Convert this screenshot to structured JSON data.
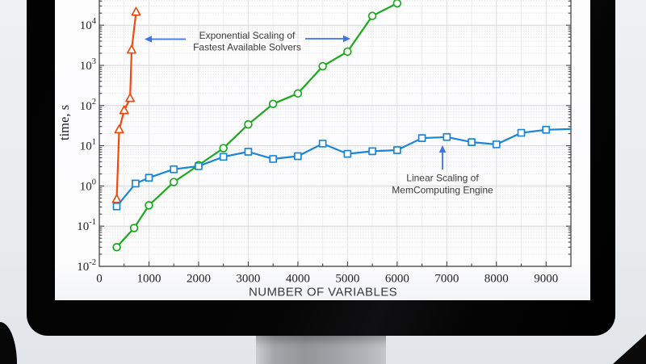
{
  "chart_data": {
    "type": "line",
    "title": "",
    "xlabel": "NUMBER OF VARIABLES",
    "ylabel": "time, s",
    "grid": {
      "major": true,
      "minor": true
    },
    "legend": "none",
    "x_axis": {
      "min": 0,
      "max": 9500,
      "major_tick_step": 1000,
      "minor_tick_step": 500,
      "tick_labels": [
        "0",
        "1000",
        "2000",
        "3000",
        "4000",
        "5000",
        "6000",
        "7000",
        "8000",
        "9000"
      ]
    },
    "y_axis": {
      "scale": "log10",
      "min_exponent": -2,
      "max_exponent": 5,
      "tick_labels": [
        "10^-2",
        "10^-1",
        "10^0",
        "10^1",
        "10^2",
        "10^3",
        "10^4"
      ]
    },
    "series": [
      {
        "name": "fastest-available-solvers-steep",
        "marker": "triangle",
        "color": "#ed4b0e",
        "points": [
          [
            350,
            0.46
          ],
          [
            400,
            25
          ],
          [
            500,
            75
          ],
          [
            620,
            150
          ],
          [
            650,
            2400
          ],
          [
            740,
            21000
          ]
        ]
      },
      {
        "name": "fastest-available-solvers",
        "marker": "circle",
        "color": "#1ca81c",
        "points": [
          [
            350,
            0.03
          ],
          [
            700,
            0.09
          ],
          [
            1000,
            0.33
          ],
          [
            1500,
            1.25
          ],
          [
            2000,
            3.3
          ],
          [
            2500,
            8.7
          ],
          [
            3000,
            34
          ],
          [
            3500,
            110
          ],
          [
            4000,
            200
          ],
          [
            4500,
            950
          ],
          [
            5000,
            2200
          ],
          [
            5500,
            17000
          ],
          [
            6000,
            35000
          ]
        ]
      },
      {
        "name": "memcomputing-engine",
        "marker": "square",
        "color": "#1b86d8",
        "points": [
          [
            350,
            0.31
          ],
          [
            730,
            1.15
          ],
          [
            1000,
            1.6
          ],
          [
            1500,
            2.6
          ],
          [
            2000,
            3.1
          ],
          [
            2500,
            5.3
          ],
          [
            3000,
            7.1
          ],
          [
            3500,
            4.7
          ],
          [
            4000,
            5.5
          ],
          [
            4500,
            11.3
          ],
          [
            5000,
            6.3
          ],
          [
            5500,
            7.3
          ],
          [
            6000,
            7.8
          ],
          [
            6500,
            15.5
          ],
          [
            7000,
            16.5
          ],
          [
            7500,
            12.3
          ],
          [
            8000,
            10.8
          ],
          [
            8500,
            21
          ],
          [
            9000,
            25
          ],
          [
            9500,
            26
          ]
        ]
      }
    ],
    "annotations": [
      {
        "id": "exponential-scaling",
        "lines": [
          "Exponential Scaling of",
          "Fastest Available Solvers"
        ],
        "text_color": "#3a3a3a",
        "arrow_color": "#3e73e8",
        "arrows": [
          "left",
          "right"
        ]
      },
      {
        "id": "linear-scaling",
        "lines": [
          "Linear Scaling of",
          "MemComputing Engine"
        ],
        "text_color": "#3a3a3a",
        "arrow_color": "#3e73e8",
        "arrows": [
          "up"
        ]
      }
    ],
    "axis_colors": {
      "spine": "#3a3a3a",
      "tick_label": "#222222",
      "axis_title": "#3a3a3a"
    }
  }
}
